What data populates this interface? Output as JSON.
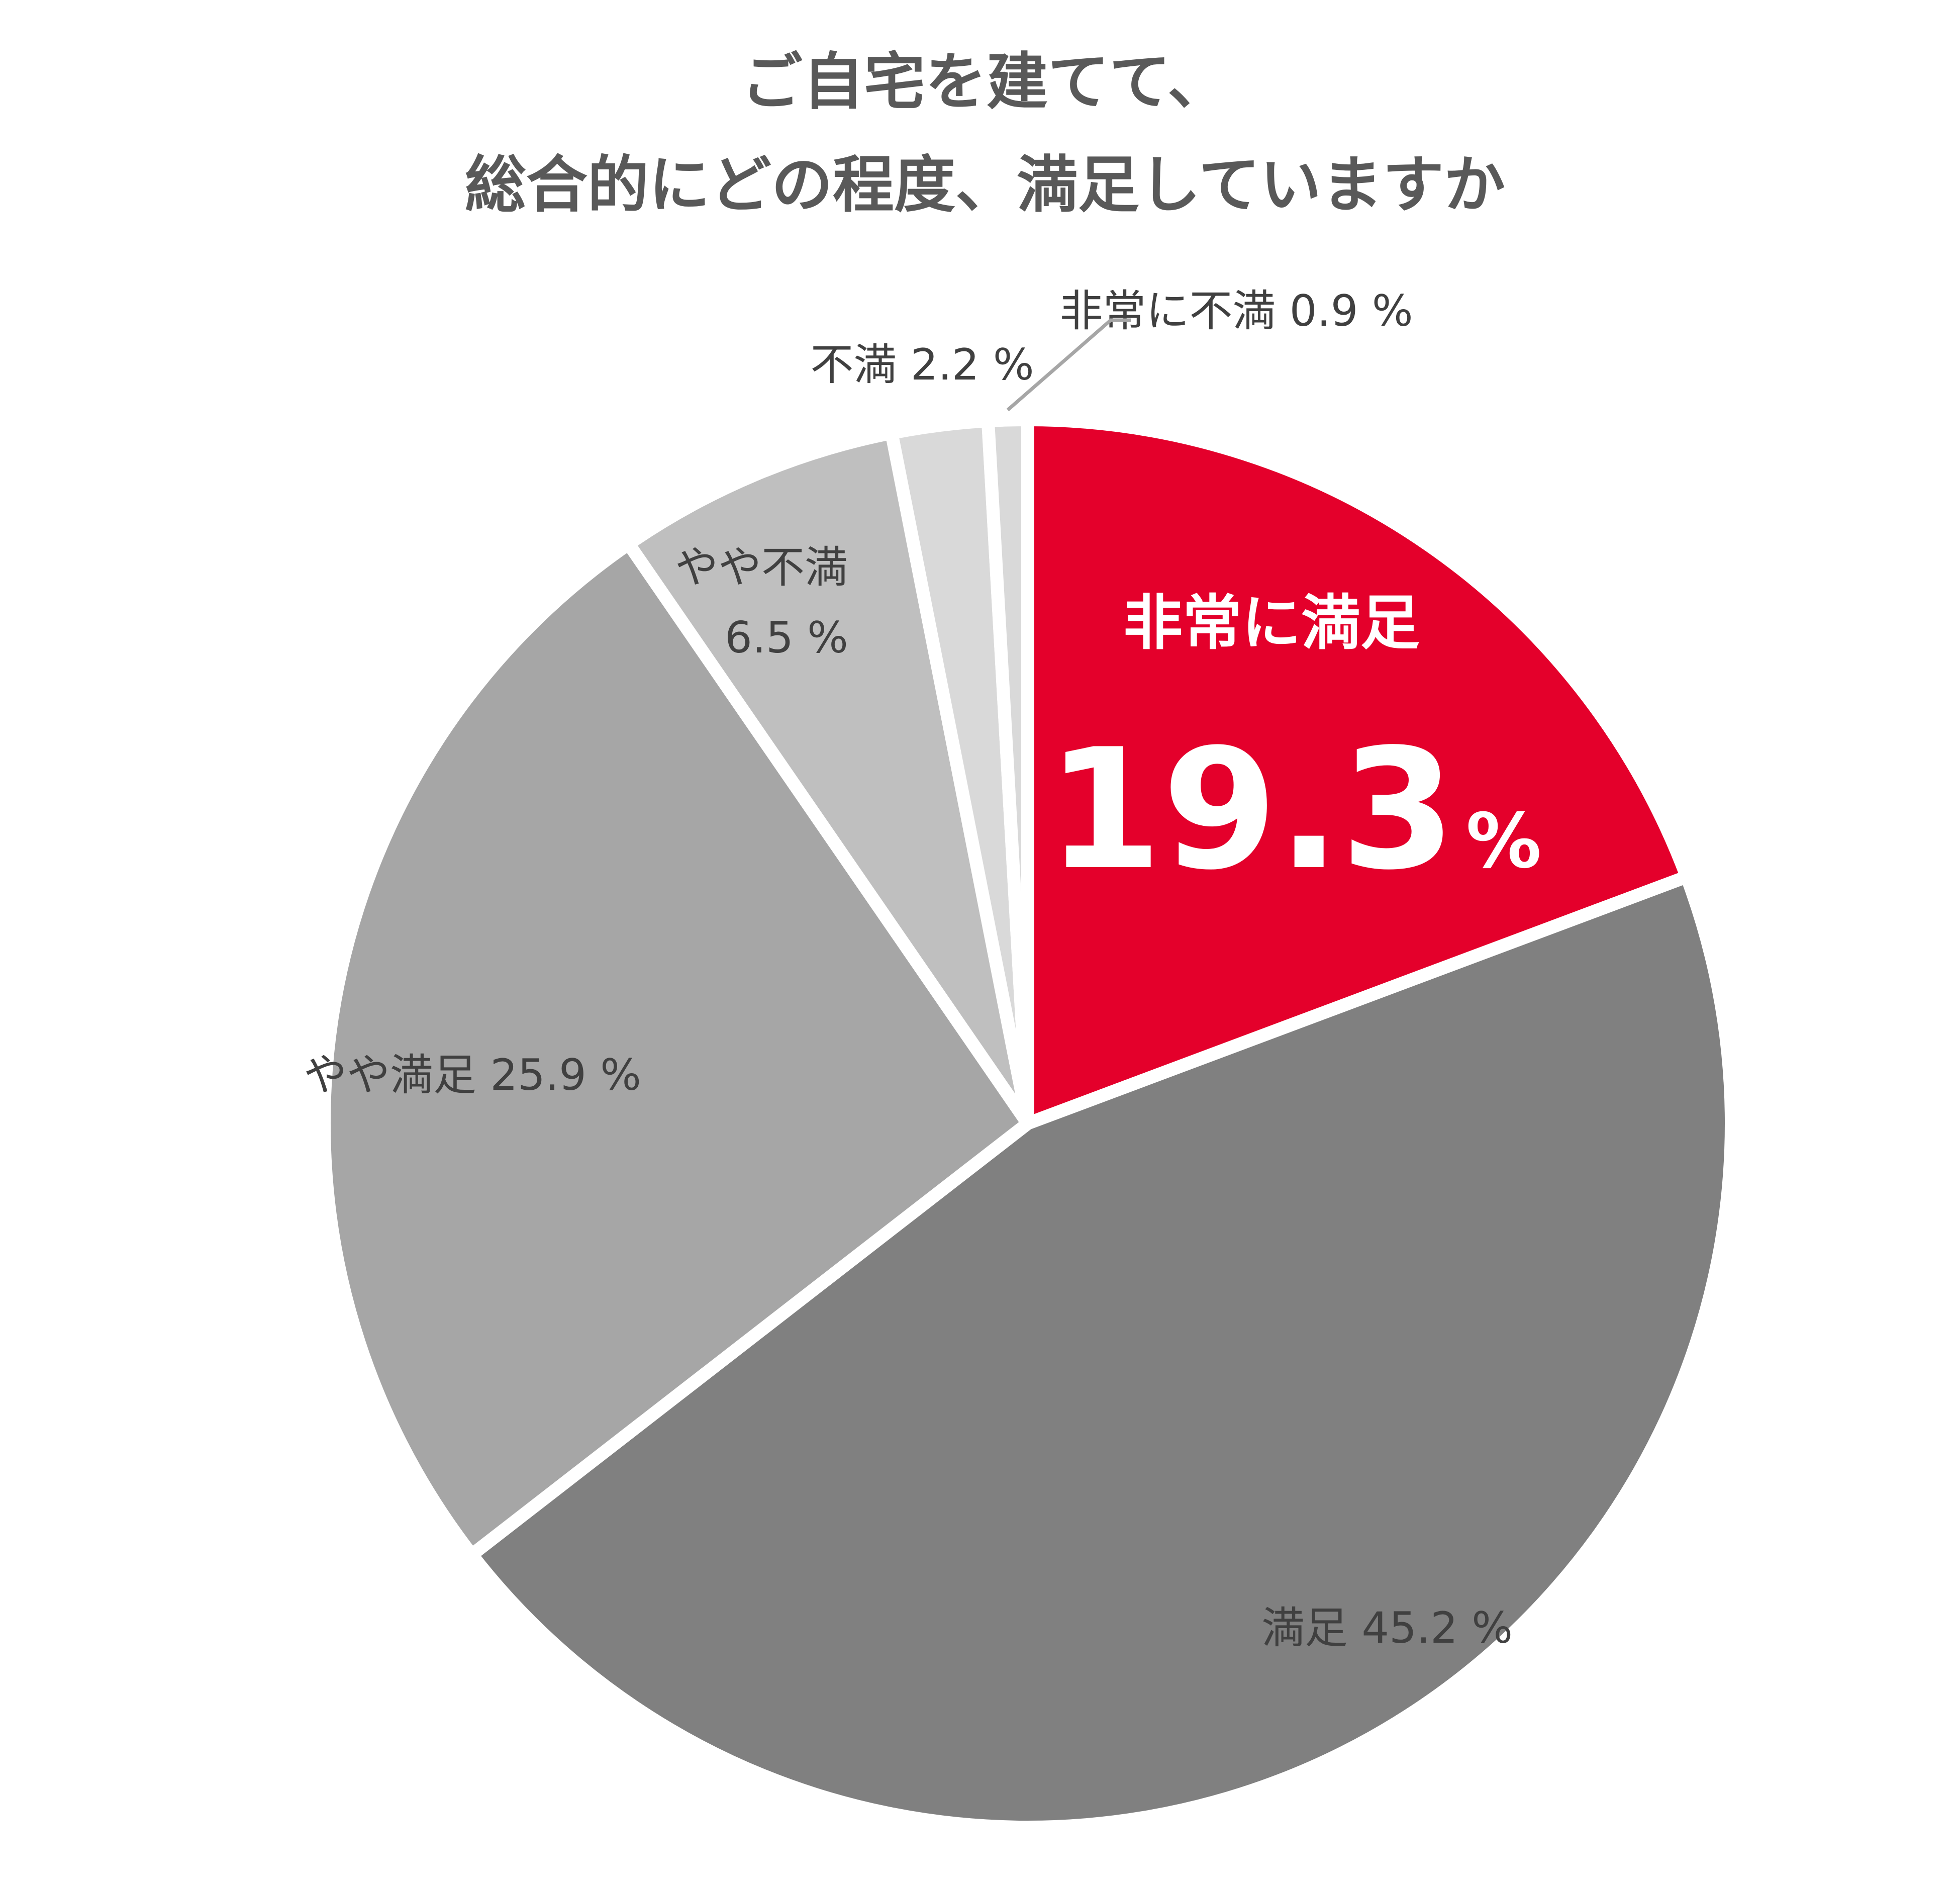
{
  "title_lines": [
    "ご自宅を建てて、",
    "総合的にどの程度、満足していますか"
  ],
  "chart_data": {
    "type": "pie",
    "title": "ご自宅を建てて、総合的にどの程度、満足していますか",
    "start_angle_deg": 0,
    "direction": "clockwise",
    "slices": [
      {
        "label": "非常に満足",
        "value": 19.3,
        "value_text": "19.3",
        "unit": "%",
        "color": "#E4002B"
      },
      {
        "label": "満足",
        "value": 45.2,
        "value_text": "45.2 %",
        "color": "#808080"
      },
      {
        "label": "やや満足",
        "value": 25.9,
        "value_text": "25.9 %",
        "color": "#A6A6A6"
      },
      {
        "label": "やや不満",
        "value": 6.5,
        "value_text": "6.5 %",
        "color": "#BFBFBF"
      },
      {
        "label": "不満",
        "value": 2.2,
        "value_text": "2.2 %",
        "color": "#D9D9D9"
      },
      {
        "label": "非常に不満",
        "value": 0.9,
        "value_text": "0.9 %",
        "color": "#D9D9D9"
      }
    ],
    "label_colors": {
      "default": "#404040",
      "highlight": "#FFFFFF",
      "leader": "#A6A6A6"
    }
  }
}
